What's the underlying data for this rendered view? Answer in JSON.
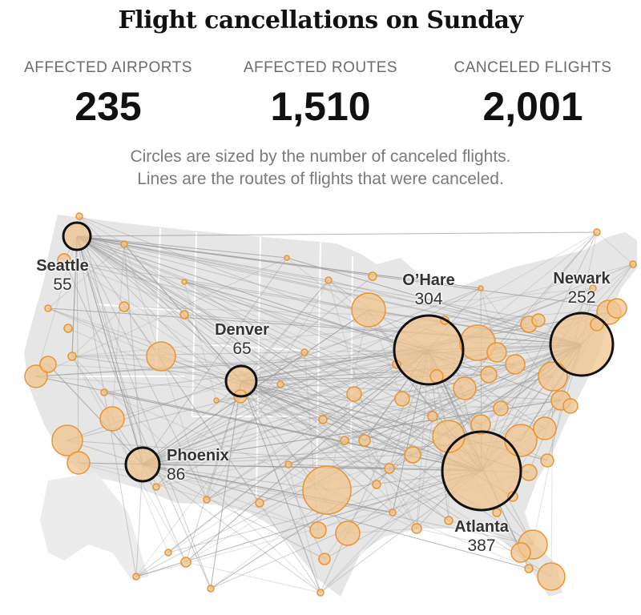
{
  "title": "Flight cancellations on Sunday",
  "stats": [
    {
      "label": "AFFECTED AIRPORTS",
      "value": "235"
    },
    {
      "label": "AFFECTED ROUTES",
      "value": "1,510"
    },
    {
      "label": "CANCELED FLIGHTS",
      "value": "2,001"
    }
  ],
  "subtitle": [
    "Circles are sized by the number of canceled flights.",
    "Lines are the routes of flights that were canceled."
  ],
  "highlighted_airports": [
    {
      "name": "Seattle",
      "canceled": 55
    },
    {
      "name": "Denver",
      "canceled": 65
    },
    {
      "name": "Phoenix",
      "canceled": 86
    },
    {
      "name": "O’Hare",
      "canceled": 304
    },
    {
      "name": "Newark",
      "canceled": 252
    },
    {
      "name": "Atlanta",
      "canceled": 387
    }
  ],
  "colors": {
    "circle_fill": "#f2c48d",
    "circle_stroke": "#e8952f",
    "route": "#9a9a9a",
    "land": "#e6e6e6",
    "highlight_ring": "#111111"
  }
}
